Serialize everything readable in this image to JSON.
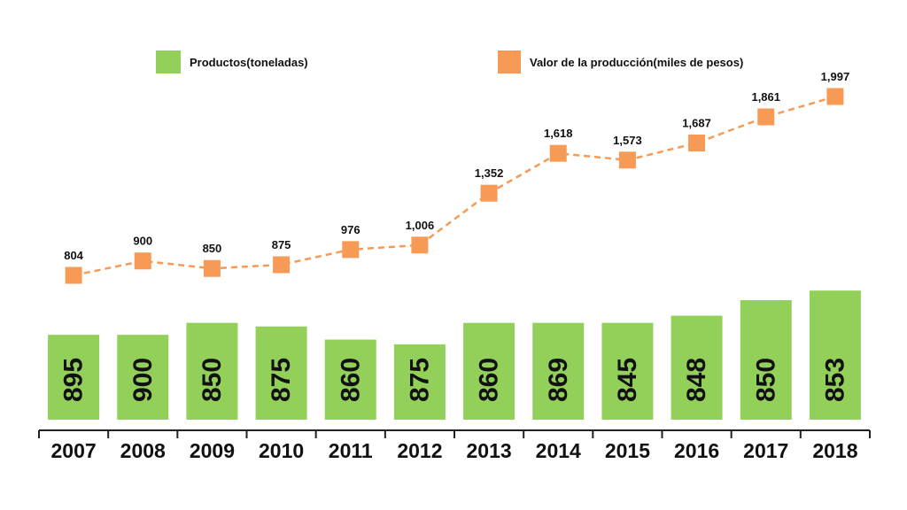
{
  "chart_data": {
    "type": "bar",
    "categories": [
      "2007",
      "2008",
      "2009",
      "2010",
      "2011",
      "2012",
      "2013",
      "2014",
      "2015",
      "2016",
      "2017",
      "2018"
    ],
    "series": [
      {
        "name": "Productos(toneladas)",
        "type": "bar",
        "color": "#92d05a",
        "values": [
          895,
          900,
          850,
          875,
          860,
          875,
          860,
          869,
          845,
          848,
          850,
          853
        ],
        "value_labels": [
          "895",
          "900",
          "850",
          "875",
          "860",
          "875",
          "860",
          "869",
          "845",
          "848",
          "850",
          "853"
        ],
        "bar_height_fraction": [
          0.71,
          0.71,
          0.81,
          0.78,
          0.67,
          0.63,
          0.81,
          0.81,
          0.81,
          0.87,
          1.0,
          1.08
        ]
      },
      {
        "name": "Valor de la producción(miles de pesos)",
        "type": "line",
        "style": "dashed",
        "marker": "square",
        "color": "#f79a55",
        "values": [
          804,
          900,
          850,
          875,
          976,
          1006,
          1352,
          1618,
          1573,
          1687,
          1861,
          1997
        ],
        "value_labels": [
          "804",
          "900",
          "850",
          "875",
          "976",
          "1,006",
          "1,352",
          "1,618",
          "1,573",
          "1,687",
          "1,861",
          "1,997"
        ]
      }
    ],
    "legend": [
      {
        "label": "Productos(toneladas)",
        "color": "#92d05a",
        "shape": "bar"
      },
      {
        "label": "Valor de la producción(miles de pesos)",
        "color": "#f79a55",
        "shape": "square"
      }
    ],
    "legend_position": "top",
    "grid": false,
    "title": "",
    "xlabel": "",
    "ylabel": ""
  }
}
